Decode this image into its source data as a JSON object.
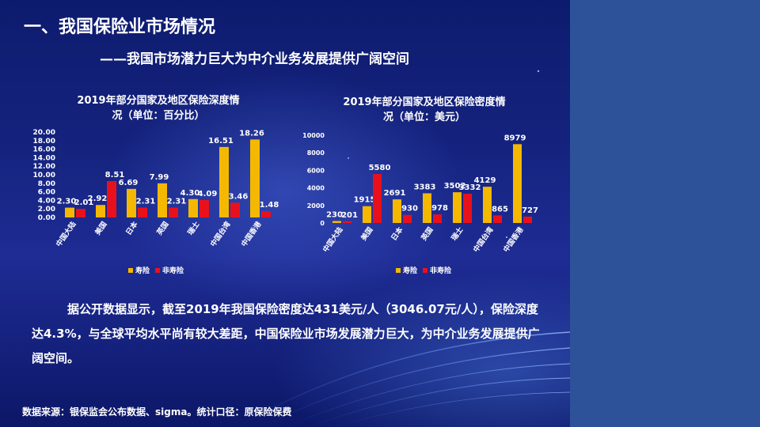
{
  "header": {
    "title": "一、我国保险业市场情况",
    "subtitle": "——我国市场潜力巨大为中介业务发展提供广阔空间"
  },
  "colors": {
    "life": "#f5b800",
    "non_life": "#e8111b",
    "text": "#ffffff"
  },
  "chart_data": [
    {
      "type": "bar",
      "title_line1": "2019年部分国家及地区保险深度情",
      "title_line2": "况（单位：百分比）",
      "categories": [
        "中国大陆",
        "美国",
        "日本",
        "英国",
        "瑞士",
        "中国台湾",
        "中国香港"
      ],
      "series": [
        {
          "name": "寿险",
          "values": [
            2.3,
            2.92,
            6.69,
            7.99,
            4.3,
            16.51,
            18.26
          ],
          "labels": [
            "2.30",
            "2.92",
            "6.69",
            "7.99",
            "4.30",
            "16.51",
            "18.26"
          ]
        },
        {
          "name": "非寿险",
          "values": [
            2.01,
            8.51,
            2.31,
            2.31,
            4.09,
            3.46,
            1.48
          ],
          "labels": [
            "2.01",
            "8.51",
            "2.31",
            "2.31",
            "4.09",
            "3.46",
            "1.48"
          ]
        }
      ],
      "yticks": [
        "0.00",
        "2.00",
        "4.00",
        "6.00",
        "8.00",
        "10.00",
        "12.00",
        "14.00",
        "16.00",
        "18.00",
        "20.00"
      ],
      "ylim": [
        0,
        20
      ],
      "legend": [
        "寿险",
        "非寿险"
      ]
    },
    {
      "type": "bar",
      "title_line1": "2019年部分国家及地区保险密度情",
      "title_line2": "况（单位：美元）",
      "categories": [
        "中国大陆",
        "美国",
        "日本",
        "英国",
        "瑞士",
        "中国台湾",
        "中国香港"
      ],
      "series": [
        {
          "name": "寿险",
          "values": [
            230,
            1915,
            2691,
            3383,
            3502,
            4129,
            8979
          ],
          "labels": [
            "230",
            "1915",
            "2691",
            "3383",
            "3502",
            "4129",
            "8979"
          ]
        },
        {
          "name": "非寿险",
          "values": [
            201,
            5580,
            930,
            978,
            3332,
            865,
            727
          ],
          "labels": [
            "201",
            "5580",
            "930",
            "978",
            "3332",
            "865",
            "727"
          ]
        }
      ],
      "yticks": [
        "0",
        "2000",
        "4000",
        "6000",
        "8000",
        "10000"
      ],
      "ylim": [
        0,
        10000
      ],
      "legend": [
        "寿险",
        "非寿险"
      ]
    }
  ],
  "body": {
    "paragraph": "据公开数据显示，截至2019年我国保险密度达431美元/人（3046.07元/人），保险深度达4.3%，与全球平均水平尚有较大差距，中国保险业市场发展潜力巨大，为中介业务发展提供广阔空间。"
  },
  "footer": {
    "source": "数据来源：银保监会公布数据、sigma。统计口径：原保险保费"
  }
}
